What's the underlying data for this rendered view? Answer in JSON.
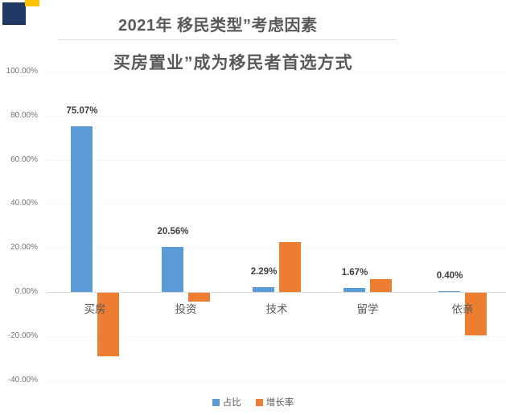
{
  "header": {
    "title": "2021年 移民类型”考虑因素",
    "subtitle": "买房置业”成为移民者首选方式"
  },
  "logo": {
    "primary_color": "#1F3864",
    "accent_color": "#FFC000"
  },
  "chart_data": {
    "type": "bar",
    "title": "2021年 移民类型”考虑因素",
    "subtitle": "买房置业”成为移民者首选方式",
    "categories": [
      "买房",
      "投资",
      "技术",
      "留学",
      "依亲"
    ],
    "series": [
      {
        "name": "占比",
        "color": "#5B9BD5",
        "values": [
          75.07,
          20.56,
          2.29,
          1.67,
          0.4
        ],
        "data_labels": [
          "75.07%",
          "20.56%",
          "2.29%",
          "1.67%",
          "0.40%"
        ]
      },
      {
        "name": "增长率",
        "color": "#ED7D31",
        "values": [
          -29,
          -4,
          22.5,
          6,
          -19.5
        ],
        "data_labels": null
      }
    ],
    "y_ticks": [
      {
        "label": "100.00%",
        "value": 100
      },
      {
        "label": "80.00%",
        "value": 80
      },
      {
        "label": "60.00%",
        "value": 60
      },
      {
        "label": "40.00%",
        "value": 40
      },
      {
        "label": "20.00%",
        "value": 20
      },
      {
        "label": "0.00%",
        "value": 0
      },
      {
        "label": "-20.00%",
        "value": -20
      },
      {
        "label": "-40.00%",
        "value": -40
      }
    ],
    "ylim": [
      -40,
      100
    ],
    "legend_position": "bottom",
    "grid": false
  },
  "legend": {
    "items": [
      {
        "label": "占比",
        "color": "#5B9BD5"
      },
      {
        "label": "增长率",
        "color": "#ED7D31"
      }
    ]
  }
}
